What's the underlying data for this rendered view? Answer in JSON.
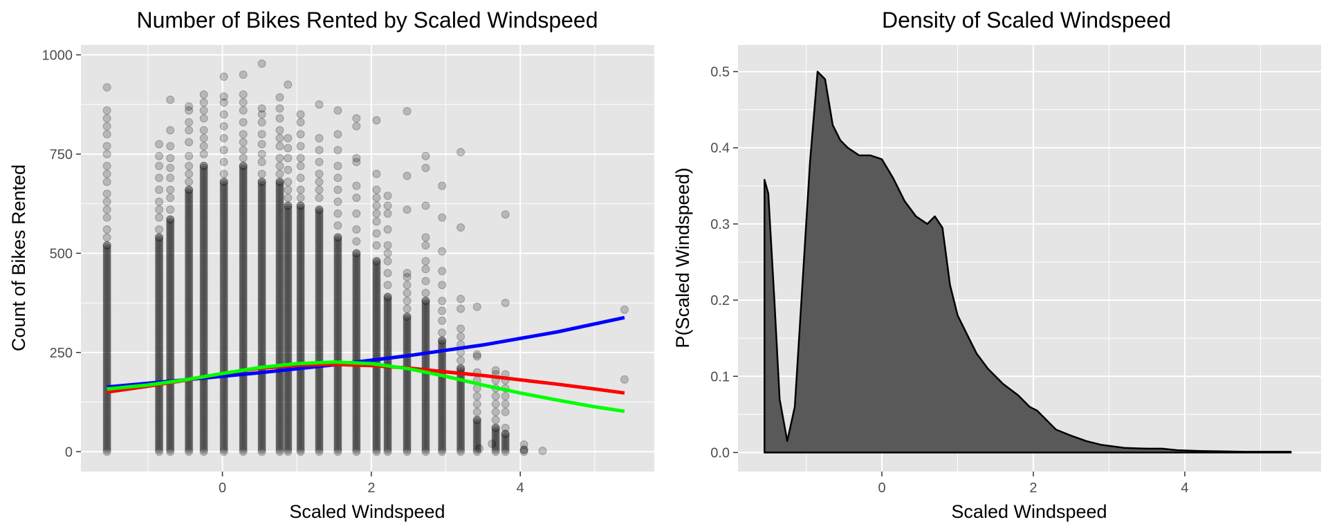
{
  "chart_data": [
    {
      "type": "scatter",
      "title": "Number of Bikes Rented by Scaled Windspeed",
      "xlabel": "Scaled Windspeed",
      "ylabel": "Count of Bikes Rented",
      "xlim": [
        -1.9,
        5.8
      ],
      "ylim": [
        -50,
        1025
      ],
      "xticks": [
        0,
        2,
        4
      ],
      "yticks": [
        0,
        250,
        500,
        750,
        1000
      ],
      "grid": true,
      "colors": {
        "points": "#000000",
        "lm": "#0000ff",
        "quadratic": "#ff0000",
        "cubic": "#00ff00",
        "panel": "#e5e5e5",
        "grid": "#ffffff"
      },
      "point_columns": [
        {
          "x": -1.55,
          "max": 918,
          "sparse_top": [
            918,
            860,
            840,
            820,
            800,
            770,
            750,
            720,
            700,
            680,
            650,
            630,
            610,
            590,
            560,
            540,
            520
          ]
        },
        {
          "x": -0.85,
          "max": 775,
          "sparse_top": [
            775,
            745,
            720,
            690,
            660,
            630,
            610,
            590,
            560,
            540
          ]
        },
        {
          "x": -0.7,
          "max": 887,
          "sparse_top": [
            887,
            810,
            770,
            740,
            715,
            690,
            660,
            640,
            610,
            585
          ]
        },
        {
          "x": -0.45,
          "max": 870,
          "sparse_top": [
            870,
            860,
            830,
            810,
            780,
            745,
            720,
            700,
            680,
            660
          ]
        },
        {
          "x": -0.25,
          "max": 900,
          "sparse_top": [
            900,
            880,
            860,
            840,
            810,
            790,
            770,
            750,
            720
          ]
        },
        {
          "x": 0.02,
          "max": 945,
          "sparse_top": [
            945,
            895,
            880,
            850,
            820,
            790,
            760,
            730,
            700,
            680
          ]
        },
        {
          "x": 0.28,
          "max": 950,
          "sparse_top": [
            950,
            900,
            880,
            860,
            830,
            800,
            780,
            760,
            740,
            720
          ]
        },
        {
          "x": 0.53,
          "max": 978,
          "sparse_top": [
            978,
            865,
            850,
            830,
            800,
            775,
            750,
            730,
            700,
            680
          ]
        },
        {
          "x": 0.77,
          "max": 893,
          "sparse_top": [
            893,
            865,
            840,
            810,
            790,
            770,
            740,
            720,
            700,
            680
          ]
        },
        {
          "x": 0.88,
          "max": 925,
          "sparse_top": [
            925,
            790,
            765,
            740,
            710,
            680,
            660,
            640,
            620
          ]
        },
        {
          "x": 1.05,
          "max": 850,
          "sparse_top": [
            850,
            830,
            800,
            770,
            740,
            720,
            690,
            660,
            640,
            620
          ]
        },
        {
          "x": 1.3,
          "max": 875,
          "sparse_top": [
            875,
            790,
            760,
            730,
            700,
            680,
            660,
            640,
            610
          ]
        },
        {
          "x": 1.55,
          "max": 860,
          "sparse_top": [
            860,
            800,
            760,
            720,
            690,
            660,
            630,
            600,
            570,
            540
          ]
        },
        {
          "x": 1.8,
          "max": 840,
          "sparse_top": [
            840,
            820,
            740,
            730,
            670,
            640,
            600,
            560,
            530,
            500
          ]
        },
        {
          "x": 2.07,
          "max": 835,
          "sparse_top": [
            835,
            700,
            660,
            640,
            620,
            600,
            580,
            550,
            520,
            480
          ]
        },
        {
          "x": 2.22,
          "max": 645,
          "sparse_top": [
            645,
            620,
            600,
            560,
            520,
            500,
            480,
            450,
            420,
            390
          ]
        },
        {
          "x": 2.48,
          "max": 858,
          "sparse_top": [
            858,
            695,
            610,
            450,
            440,
            420,
            400,
            380,
            360,
            340
          ]
        },
        {
          "x": 2.73,
          "max": 745,
          "sparse_top": [
            745,
            715,
            620,
            540,
            520,
            480,
            460,
            430,
            400,
            380
          ]
        },
        {
          "x": 2.95,
          "max": 670,
          "sparse_top": [
            670,
            590,
            505,
            455,
            420,
            380,
            355,
            330,
            300,
            280
          ]
        },
        {
          "x": 3.2,
          "max": 755,
          "sparse_top": [
            755,
            565,
            385,
            360,
            310,
            290,
            270,
            250,
            230,
            210
          ]
        },
        {
          "x": 3.42,
          "max": 365,
          "sparse_top": [
            365,
            245,
            240,
            200,
            180,
            160,
            140,
            120,
            100,
            80
          ]
        },
        {
          "x": 3.67,
          "max": 205,
          "sparse_top": [
            205,
            195,
            180,
            160,
            140,
            120,
            100,
            80,
            60
          ]
        },
        {
          "x": 3.8,
          "max": 598,
          "sparse_top": [
            598,
            375,
            195,
            180,
            160,
            140,
            120,
            100,
            60,
            45
          ]
        },
        {
          "x": 4.05,
          "max": 18,
          "sparse_top": [
            18,
            5
          ]
        }
      ],
      "extra_points": [
        [
          4.3,
          2
        ],
        [
          5.4,
          358
        ],
        [
          5.4,
          182
        ],
        [
          3.45,
          8
        ],
        [
          3.62,
          20
        ]
      ],
      "series": [
        {
          "name": "",
          "color": "#0000ff",
          "x": [
            -1.55,
            -0.5,
            0.5,
            1.5,
            2.5,
            3.5,
            4.5,
            5.4
          ],
          "y": [
            163,
            181,
            199,
            219,
            242,
            269,
            302,
            338
          ]
        },
        {
          "name": "",
          "color": "#ff0000",
          "x": [
            -1.55,
            -1.0,
            -0.5,
            0.0,
            0.5,
            1.0,
            1.5,
            2.0,
            2.5,
            3.0,
            3.5,
            4.0,
            4.5,
            5.0,
            5.4
          ],
          "y": [
            150,
            165,
            180,
            197,
            210,
            218,
            220,
            217,
            211,
            201,
            192,
            181,
            170,
            158,
            148
          ]
        },
        {
          "name": "",
          "color": "#00ff00",
          "x": [
            -1.55,
            -1.0,
            -0.5,
            0.0,
            0.5,
            1.0,
            1.5,
            2.0,
            2.5,
            3.0,
            3.5,
            4.0,
            4.5,
            5.0,
            5.4
          ],
          "y": [
            158,
            168,
            181,
            197,
            212,
            222,
            226,
            222,
            209,
            190,
            168,
            148,
            130,
            113,
            102
          ]
        }
      ]
    },
    {
      "type": "area",
      "title": "Density of Scaled Windspeed",
      "xlabel": "Scaled Windspeed",
      "ylabel": "P(Scaled Windspeed)",
      "xlim": [
        -1.9,
        5.8
      ],
      "ylim": [
        -0.025,
        0.535
      ],
      "xticks": [
        0,
        2,
        4
      ],
      "yticks": [
        0.0,
        0.1,
        0.2,
        0.3,
        0.4,
        0.5
      ],
      "ytick_labels": [
        "0.0",
        "0.1",
        "0.2",
        "0.3",
        "0.4",
        "0.5"
      ],
      "grid": true,
      "colors": {
        "fill": "#595959",
        "line": "#000000",
        "panel": "#e5e5e5",
        "grid": "#ffffff"
      },
      "x": [
        -1.55,
        -1.55,
        -1.5,
        -1.42,
        -1.35,
        -1.25,
        -1.15,
        -1.05,
        -0.95,
        -0.85,
        -0.75,
        -0.65,
        -0.55,
        -0.45,
        -0.3,
        -0.15,
        0.0,
        0.15,
        0.3,
        0.45,
        0.6,
        0.7,
        0.8,
        0.9,
        1.0,
        1.1,
        1.25,
        1.4,
        1.6,
        1.8,
        1.95,
        2.05,
        2.15,
        2.3,
        2.5,
        2.7,
        2.9,
        3.2,
        3.5,
        3.7,
        3.9,
        4.2,
        4.8,
        5.4,
        5.4
      ],
      "y": [
        0,
        0.358,
        0.34,
        0.2,
        0.07,
        0.015,
        0.06,
        0.22,
        0.38,
        0.5,
        0.49,
        0.43,
        0.41,
        0.4,
        0.39,
        0.39,
        0.385,
        0.36,
        0.33,
        0.31,
        0.3,
        0.31,
        0.295,
        0.22,
        0.18,
        0.16,
        0.13,
        0.11,
        0.09,
        0.075,
        0.06,
        0.055,
        0.045,
        0.03,
        0.022,
        0.015,
        0.01,
        0.006,
        0.005,
        0.005,
        0.003,
        0.002,
        0.001,
        0.001,
        0
      ]
    }
  ]
}
